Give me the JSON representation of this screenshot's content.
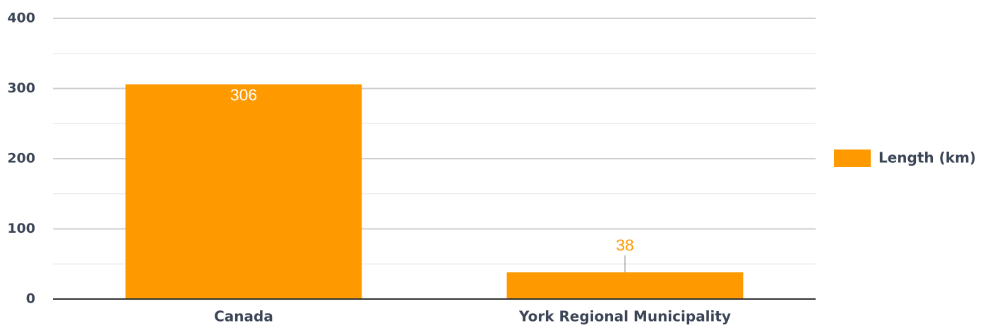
{
  "chart_data": {
    "type": "bar",
    "categories": [
      "Canada",
      "York Regional Municipality"
    ],
    "series": [
      {
        "name": "Length (km)",
        "color": "#ff9900",
        "values": [
          306,
          38
        ]
      }
    ],
    "ylim": [
      0,
      400
    ],
    "yticks": [
      0,
      100,
      200,
      300,
      400
    ],
    "minor_yticks": [
      50,
      150,
      250,
      350
    ],
    "grid": true,
    "legend": "right"
  }
}
